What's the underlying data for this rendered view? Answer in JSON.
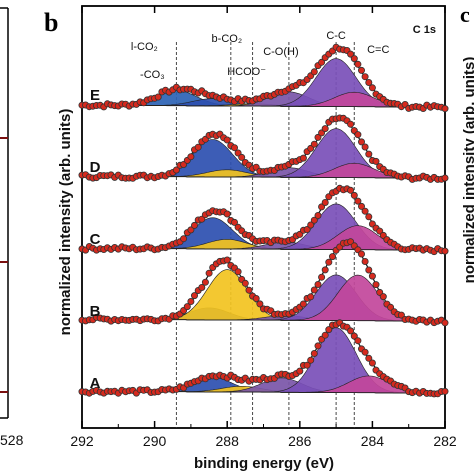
{
  "chart_data": {
    "type": "line",
    "panel_label": "b",
    "next_panel_label": "c",
    "left_edge_tick": "528",
    "title": "C 1s",
    "xlabel": "binding energy (eV)",
    "ylabel": "normalized intensity (arb. units)",
    "right_ylabel": "normalized intensity (arb. units)",
    "xlim": [
      292,
      282
    ],
    "x_reversed": true,
    "xticks": [
      292,
      290,
      288,
      286,
      284,
      282
    ],
    "markers": [
      {
        "label": "l-CO₂",
        "x": 289.4
      },
      {
        "label": "-CO₃",
        "x": 289.4
      },
      {
        "label": "b-CO₂",
        "x": 287.9
      },
      {
        "label": "HCOO⁻",
        "x": 287.3
      },
      {
        "label": "C-O(H)",
        "x": 286.3
      },
      {
        "label": "C-C",
        "x": 285.0
      },
      {
        "label": "C=C",
        "x": 284.5
      }
    ],
    "component_colors": {
      "carbonate": "#2c63b5",
      "b-CO2": "#2c4fb0",
      "formate": "#f2c320",
      "C-O(H)": "#7a55a8",
      "C-C": "#7a4fb8",
      "C=C": "#c2479b"
    },
    "data_color": "#d62a1e",
    "spectra": [
      {
        "name": "E",
        "components": [
          {
            "type": "carbonate",
            "center": 289.4,
            "height": 0.32
          },
          {
            "type": "b-CO2",
            "center": 288.4,
            "height": 0.15
          },
          {
            "type": "formate",
            "center": 287.3,
            "height": 0.05
          },
          {
            "type": "C-O(H)",
            "center": 286.3,
            "height": 0.3
          },
          {
            "type": "C-C",
            "center": 285.0,
            "height": 1.0
          },
          {
            "type": "C=C",
            "center": 284.5,
            "height": 0.3
          }
        ]
      },
      {
        "name": "D",
        "components": [
          {
            "type": "b-CO2",
            "center": 288.4,
            "height": 0.78
          },
          {
            "type": "formate",
            "center": 288.0,
            "height": 0.15
          },
          {
            "type": "C-O(H)",
            "center": 286.3,
            "height": 0.2
          },
          {
            "type": "C-C",
            "center": 285.0,
            "height": 1.02
          },
          {
            "type": "C=C",
            "center": 284.5,
            "height": 0.3
          }
        ]
      },
      {
        "name": "C",
        "components": [
          {
            "type": "b-CO2",
            "center": 288.4,
            "height": 0.65
          },
          {
            "type": "formate",
            "center": 288.0,
            "height": 0.2
          },
          {
            "type": "C-O(H)",
            "center": 286.4,
            "height": 0.15
          },
          {
            "type": "C-C",
            "center": 285.0,
            "height": 0.95
          },
          {
            "type": "C=C",
            "center": 284.4,
            "height": 0.5
          }
        ]
      },
      {
        "name": "B",
        "components": [
          {
            "type": "b-CO2",
            "center": 288.5,
            "height": 0.25
          },
          {
            "type": "formate",
            "center": 288.0,
            "height": 1.05
          },
          {
            "type": "C-O(H)",
            "center": 286.4,
            "height": 0.1
          },
          {
            "type": "C-C",
            "center": 285.0,
            "height": 0.95
          },
          {
            "type": "C=C",
            "center": 284.4,
            "height": 0.95
          }
        ]
      },
      {
        "name": "A",
        "components": [
          {
            "type": "b-CO2",
            "center": 288.4,
            "height": 0.3
          },
          {
            "type": "formate",
            "center": 287.6,
            "height": 0.12
          },
          {
            "type": "C-O(H)",
            "center": 286.5,
            "height": 0.3
          },
          {
            "type": "C-C",
            "center": 285.0,
            "height": 1.35
          },
          {
            "type": "C=C",
            "center": 284.1,
            "height": 0.35
          }
        ]
      }
    ]
  }
}
